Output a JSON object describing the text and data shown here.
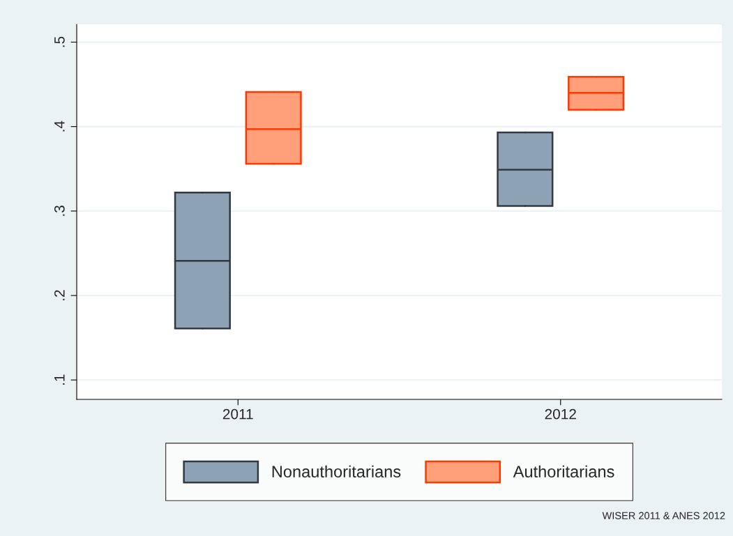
{
  "chart_data": {
    "type": "box",
    "categories": [
      "2011",
      "2012"
    ],
    "series": [
      {
        "name": "Nonauthoritarians",
        "color": "#8ea2b6",
        "boxes": [
          {
            "low": 0.161,
            "q1": 0.161,
            "median": 0.241,
            "q3": 0.322,
            "high": 0.322
          },
          {
            "low": 0.306,
            "q1": 0.306,
            "median": 0.349,
            "q3": 0.393,
            "high": 0.393
          }
        ]
      },
      {
        "name": "Authoritarians",
        "color": "#ffa07a",
        "boxes": [
          {
            "low": 0.356,
            "q1": 0.356,
            "median": 0.397,
            "q3": 0.441,
            "high": 0.441
          },
          {
            "low": 0.42,
            "q1": 0.42,
            "median": 0.44,
            "q3": 0.459,
            "high": 0.459
          }
        ]
      }
    ],
    "ylim": [
      0.077,
      0.521
    ],
    "yticks": [
      {
        "value": 0.1,
        "label": ".1"
      },
      {
        "value": 0.2,
        "label": ".2"
      },
      {
        "value": 0.3,
        "label": ".3"
      },
      {
        "value": 0.4,
        "label": ".4"
      },
      {
        "value": 0.5,
        "label": ".5"
      }
    ],
    "grid": "y",
    "legend": "bottom",
    "annotations": [
      "WISER 2011 & ANES 2012"
    ]
  }
}
